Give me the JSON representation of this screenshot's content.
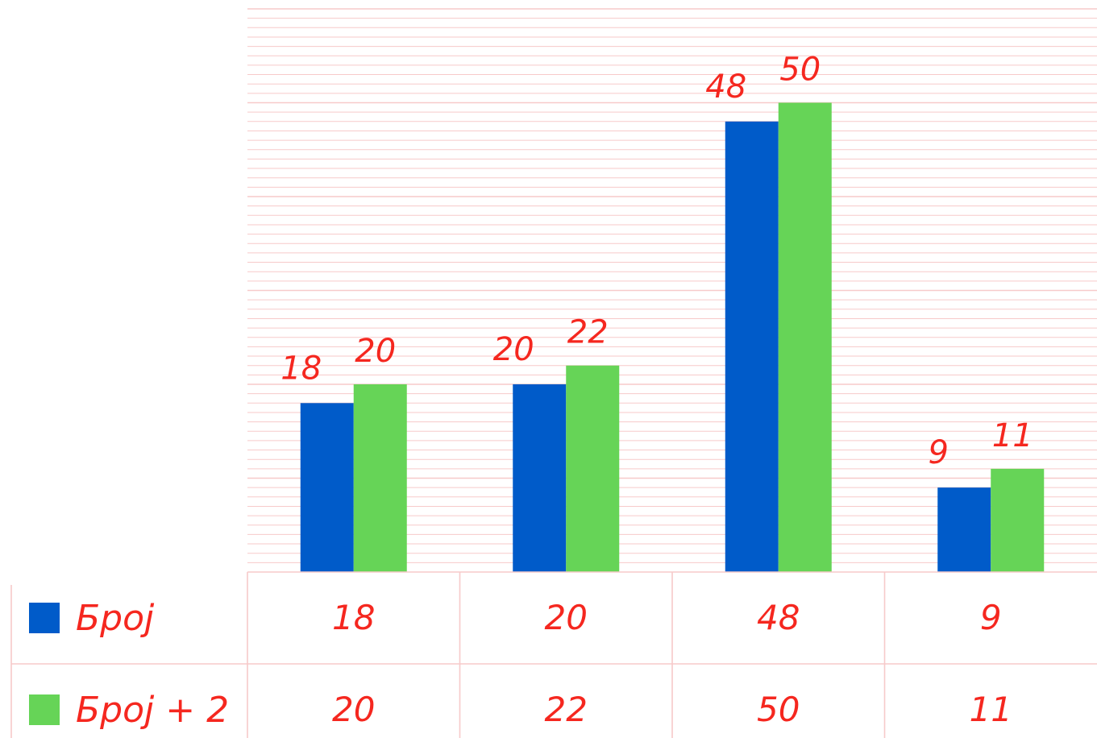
{
  "chart_data": {
    "type": "bar",
    "categories": [
      "",
      "",
      "",
      ""
    ],
    "series": [
      {
        "name": "Број",
        "values": [
          18,
          20,
          48,
          9
        ],
        "color": "#005bc9"
      },
      {
        "name": "Број + 2",
        "values": [
          20,
          22,
          50,
          11
        ],
        "color": "#66d457"
      }
    ],
    "ylim": [
      0,
      60
    ],
    "grid": true,
    "data_labels": true,
    "legend": "data-table-left",
    "grid_color": "#f7caca",
    "label_color": "#f5271f"
  }
}
